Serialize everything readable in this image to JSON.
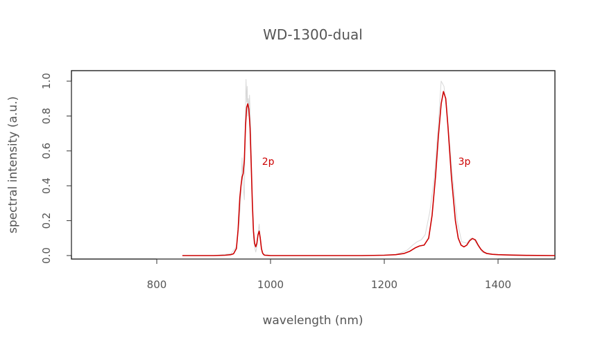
{
  "chart_data": {
    "type": "line",
    "title": "WD-1300-dual",
    "xlabel": "wavelength (nm)",
    "ylabel": "spectral intensity (a.u.)",
    "xlim": [
      650,
      1500
    ],
    "ylim": [
      -0.02,
      1.06
    ],
    "x_ticks": [
      800,
      1000,
      1200,
      1400
    ],
    "y_ticks": [
      0.0,
      0.2,
      0.4,
      0.6,
      0.8,
      1.0
    ],
    "x_tick_labels": [
      "800",
      "1000",
      "1200",
      "1400"
    ],
    "y_tick_labels": [
      "0.0",
      "0.2",
      "0.4",
      "0.6",
      "0.8",
      "1.0"
    ],
    "grid": false,
    "series": [
      {
        "role": "raw",
        "color": "#d8d8d8",
        "x": [
          845,
          900,
          930,
          940,
          945,
          948,
          950,
          952,
          954,
          955,
          956,
          957,
          958,
          959,
          960,
          961,
          962,
          963,
          964,
          965,
          966,
          967,
          968,
          969,
          970,
          972,
          974,
          976,
          978,
          980,
          982,
          984,
          986,
          990,
          1000,
          1100,
          1160,
          1220,
          1240,
          1250,
          1258,
          1265,
          1272,
          1280,
          1288,
          1295,
          1300,
          1305,
          1312,
          1320,
          1328,
          1336,
          1345,
          1352,
          1358,
          1364,
          1372,
          1380,
          1400,
          1430,
          1500
        ],
        "y": [
          0,
          0,
          0.01,
          0.05,
          0.2,
          0.35,
          0.56,
          0.4,
          0.32,
          0.62,
          0.85,
          1.01,
          0.88,
          0.97,
          0.8,
          0.9,
          0.82,
          0.92,
          0.84,
          0.75,
          0.6,
          0.45,
          0.3,
          0.2,
          0.1,
          0.05,
          0.02,
          0.05,
          0.12,
          0.18,
          0.1,
          0.04,
          0.01,
          0.005,
          0,
          0,
          0,
          0.005,
          0.03,
          0.06,
          0.08,
          0.09,
          0.12,
          0.25,
          0.45,
          0.75,
          1.0,
          0.97,
          0.75,
          0.45,
          0.2,
          0.08,
          0.07,
          0.1,
          0.09,
          0.06,
          0.02,
          0.01,
          0.005,
          0,
          0
        ]
      },
      {
        "role": "smoothed",
        "color": "#cc0000",
        "annotations": [
          {
            "text": "2p",
            "x": 985,
            "y": 0.5
          },
          {
            "text": "3p",
            "x": 1330,
            "y": 0.5
          }
        ],
        "x": [
          845,
          900,
          920,
          930,
          935,
          940,
          943,
          946,
          948,
          950,
          952,
          954,
          956,
          958,
          960,
          962,
          964,
          966,
          968,
          970,
          972,
          974,
          976,
          978,
          980,
          982,
          984,
          986,
          988,
          990,
          995,
          1000,
          1100,
          1160,
          1200,
          1220,
          1235,
          1245,
          1255,
          1262,
          1270,
          1278,
          1284,
          1290,
          1295,
          1300,
          1304,
          1308,
          1312,
          1318,
          1325,
          1330,
          1335,
          1340,
          1345,
          1350,
          1355,
          1360,
          1365,
          1370,
          1375,
          1380,
          1390,
          1400,
          1420,
          1450,
          1500
        ],
        "y": [
          0,
          0,
          0.002,
          0.005,
          0.01,
          0.04,
          0.15,
          0.33,
          0.4,
          0.45,
          0.47,
          0.55,
          0.74,
          0.85,
          0.87,
          0.84,
          0.73,
          0.53,
          0.3,
          0.14,
          0.07,
          0.05,
          0.07,
          0.12,
          0.14,
          0.1,
          0.04,
          0.015,
          0.005,
          0.002,
          0.001,
          0,
          0,
          0,
          0.002,
          0.005,
          0.012,
          0.025,
          0.045,
          0.055,
          0.06,
          0.1,
          0.23,
          0.45,
          0.68,
          0.87,
          0.94,
          0.9,
          0.74,
          0.45,
          0.2,
          0.1,
          0.06,
          0.05,
          0.06,
          0.085,
          0.098,
          0.09,
          0.06,
          0.035,
          0.02,
          0.012,
          0.007,
          0.005,
          0.003,
          0.001,
          0
        ]
      }
    ]
  }
}
